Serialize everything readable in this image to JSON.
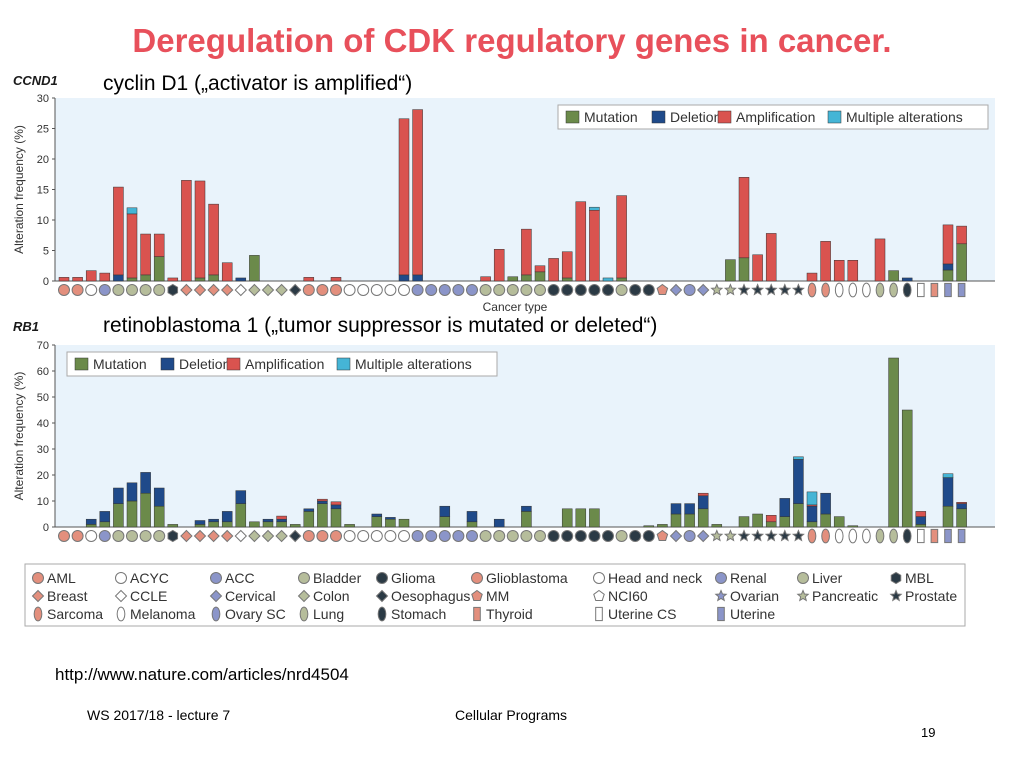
{
  "slide": {
    "title": "Deregulation of CDK regulatory genes in cancer.",
    "subtitle1": "cyclin D1 („activator is amplified“)",
    "subtitle2": "retinoblastoma 1 („tumor suppressor is mutated or deleted“)",
    "url": "http://www.nature.com/articles/nrd4504",
    "footer_left": "WS 2017/18 - lecture 7",
    "footer_center": "Cellular Programs",
    "page_number": "19"
  },
  "colors": {
    "mutation": "#6b8a4a",
    "deletion": "#1f4a8a",
    "amplification": "#d9534f",
    "multiple": "#45b5d6",
    "plot_bg": "#e9f3fb",
    "title": "#e8505b"
  },
  "series_names": [
    "Mutation",
    "Deletion",
    "Amplification",
    "Multiple alterations"
  ],
  "cancer_legend": [
    {
      "label": "AML",
      "shape": "circle",
      "color": "#e38f7d"
    },
    {
      "label": "ACYC",
      "shape": "circle",
      "color": "#ffffff"
    },
    {
      "label": "ACC",
      "shape": "circle",
      "color": "#8b95c9"
    },
    {
      "label": "Bladder",
      "shape": "circle",
      "color": "#b6bd9b"
    },
    {
      "label": "Glioma",
      "shape": "circle",
      "color": "#2b3a45"
    },
    {
      "label": "Glioblastoma",
      "shape": "circle",
      "color": "#e38f7d"
    },
    {
      "label": "Head and neck",
      "shape": "circle",
      "color": "#ffffff"
    },
    {
      "label": "Renal",
      "shape": "circle",
      "color": "#8b95c9"
    },
    {
      "label": "Liver",
      "shape": "circle",
      "color": "#b6bd9b"
    },
    {
      "label": "MBL",
      "shape": "hexagon",
      "color": "#2b3a45"
    },
    {
      "label": "Breast",
      "shape": "diamond",
      "color": "#e38f7d"
    },
    {
      "label": "CCLE",
      "shape": "diamond",
      "color": "#ffffff"
    },
    {
      "label": "Cervical",
      "shape": "diamond",
      "color": "#8b95c9"
    },
    {
      "label": "Colon",
      "shape": "diamond",
      "color": "#b6bd9b"
    },
    {
      "label": "Oesophagus",
      "shape": "diamond",
      "color": "#2b3a45"
    },
    {
      "label": "MM",
      "shape": "pentagon",
      "color": "#e38f7d"
    },
    {
      "label": "NCI60",
      "shape": "pentagon",
      "color": "#ffffff"
    },
    {
      "label": "Ovarian",
      "shape": "star",
      "color": "#8b95c9"
    },
    {
      "label": "Pancreatic",
      "shape": "star",
      "color": "#b6bd9b"
    },
    {
      "label": "Prostate",
      "shape": "star",
      "color": "#2b3a45"
    },
    {
      "label": "Sarcoma",
      "shape": "oval",
      "color": "#e38f7d"
    },
    {
      "label": "Melanoma",
      "shape": "oval",
      "color": "#ffffff"
    },
    {
      "label": "Ovary SC",
      "shape": "oval",
      "color": "#8b95c9"
    },
    {
      "label": "Lung",
      "shape": "oval",
      "color": "#b6bd9b"
    },
    {
      "label": "Stomach",
      "shape": "oval",
      "color": "#2b3a45"
    },
    {
      "label": "Thyroid",
      "shape": "rect",
      "color": "#e38f7d"
    },
    {
      "label": "Uterine CS",
      "shape": "rect",
      "color": "#ffffff"
    },
    {
      "label": "Uterine",
      "shape": "rect",
      "color": "#8b95c9"
    }
  ],
  "categories": [
    "AML",
    "AML",
    "ACYC",
    "ACC",
    "Bladder",
    "Bladder",
    "Bladder",
    "Bladder",
    "MBL",
    "Breast",
    "Breast",
    "Breast",
    "Breast",
    "CCLE",
    "Colon",
    "Colon",
    "Colon",
    "Oesophagus",
    "Glioblastoma",
    "Glioblastoma",
    "Glioblastoma",
    "Head and neck",
    "Head and neck",
    "Head and neck",
    "Head and neck",
    "Head and neck",
    "ACC",
    "Renal",
    "Renal",
    "Renal",
    "Renal",
    "Liver",
    "Liver",
    "Liver",
    "Liver",
    "Liver",
    "Glioma",
    "Glioma",
    "Glioma",
    "Glioma",
    "Glioma",
    "Bladder",
    "Glioma",
    "Glioma",
    "MM",
    "Cervical",
    "Renal",
    "Cervical",
    "Pancreatic",
    "Pancreatic",
    "Prostate",
    "Prostate",
    "Prostate",
    "Prostate",
    "Prostate",
    "Sarcoma",
    "Sarcoma",
    "Melanoma",
    "Melanoma",
    "Melanoma",
    "Lung",
    "Lung",
    "Stomach",
    "Uterine CS",
    "Thyroid",
    "Uterine",
    "Uterine"
  ],
  "chart_data": [
    {
      "type": "bar",
      "stacked": true,
      "gene": "CCND1",
      "ylabel": "Alteration frequency (%)",
      "xlabel": "Cancer type",
      "ylim": [
        0,
        30
      ],
      "yticks": [
        0,
        5,
        10,
        15,
        20,
        25,
        30
      ],
      "legend_position": "top-right",
      "series": [
        {
          "name": "Mutation",
          "values": [
            0,
            0,
            0,
            0,
            0,
            0.5,
            1,
            4,
            0,
            0,
            0.5,
            1,
            0,
            0,
            4.2,
            0,
            0,
            0,
            0,
            0,
            0,
            0,
            0,
            0,
            0,
            0,
            0,
            0,
            0,
            0,
            0,
            0,
            0,
            0.7,
            1,
            1.5,
            0,
            0.5,
            0,
            0,
            0,
            0.5,
            0,
            0,
            0,
            0,
            0,
            0,
            0,
            3.5,
            3.8,
            0,
            0,
            0,
            0,
            0,
            0,
            0,
            0,
            0,
            0,
            1.7,
            0,
            0,
            0,
            1.8,
            6.1
          ]
        },
        {
          "name": "Deletion",
          "values": [
            0,
            0,
            0,
            0,
            1,
            0,
            0,
            0,
            0,
            0,
            0,
            0,
            0,
            0.5,
            0,
            0,
            0,
            0,
            0,
            0,
            0,
            0,
            0,
            0,
            0,
            1,
            1,
            0,
            0,
            0,
            0,
            0,
            0,
            0,
            0,
            0,
            0,
            0,
            0,
            0,
            0,
            0,
            0,
            0,
            0,
            0,
            0,
            0,
            0,
            0,
            0,
            0,
            0,
            0,
            0,
            0,
            0,
            0,
            0,
            0,
            0,
            0,
            0.5,
            0,
            0,
            1,
            0
          ]
        },
        {
          "name": "Amplification",
          "values": [
            0.6,
            0.6,
            1.7,
            1.3,
            14.4,
            10.5,
            6.7,
            3.7,
            0.5,
            16.5,
            15.9,
            11.6,
            3,
            0,
            0,
            0,
            0,
            0,
            0.6,
            0,
            0.6,
            0,
            0,
            0,
            0,
            25.6,
            27.1,
            0,
            0,
            0,
            0,
            0.7,
            5.2,
            0,
            7.5,
            1,
            3.7,
            4.3,
            13,
            11.6,
            0,
            13.5,
            0,
            0,
            0,
            0,
            0,
            0,
            0,
            0,
            13.2,
            4.3,
            7.8,
            0,
            0,
            1.3,
            6.5,
            3.4,
            3.4,
            0,
            6.9,
            0,
            0,
            0,
            0,
            6.4,
            2.9
          ]
        },
        {
          "name": "Multiple alterations",
          "values": [
            0,
            0,
            0,
            0,
            0,
            1,
            0,
            0,
            0,
            0,
            0,
            0,
            0,
            0,
            0,
            0,
            0,
            0,
            0,
            0,
            0,
            0,
            0,
            0,
            0,
            0,
            0,
            0,
            0,
            0,
            0,
            0,
            0,
            0,
            0,
            0,
            0,
            0,
            0,
            0.5,
            0.5,
            0,
            0,
            0,
            0,
            0,
            0,
            0,
            0,
            0,
            0,
            0,
            0,
            0,
            0,
            0,
            0,
            0,
            0,
            0,
            0,
            0,
            0,
            0,
            0,
            0,
            0
          ]
        }
      ]
    },
    {
      "type": "bar",
      "stacked": true,
      "gene": "RB1",
      "ylabel": "Alteration frequency (%)",
      "xlabel": "",
      "ylim": [
        0,
        70
      ],
      "yticks": [
        0,
        10,
        20,
        30,
        40,
        50,
        60,
        70
      ],
      "legend_position": "top-left",
      "series": [
        {
          "name": "Mutation",
          "values": [
            0,
            0,
            1,
            2,
            9,
            10,
            13,
            8,
            1,
            0,
            1,
            2,
            2,
            9,
            2,
            2,
            2,
            1,
            6,
            9,
            7,
            1,
            0,
            4,
            3,
            3,
            0,
            0,
            4,
            0,
            2,
            0,
            0,
            0,
            6,
            0,
            0,
            7,
            7,
            7,
            0,
            0,
            0,
            0.5,
            1,
            5,
            5,
            7,
            1,
            0,
            4,
            5,
            2,
            4,
            9,
            2,
            5,
            4,
            0.5,
            0,
            0,
            65,
            45,
            1,
            0,
            8,
            7
          ]
        },
        {
          "name": "Deletion",
          "values": [
            0,
            0,
            2,
            4,
            6,
            7,
            8,
            7,
            0,
            0,
            1.5,
            1,
            4,
            5,
            0,
            1,
            1,
            0,
            1,
            1,
            1.5,
            0,
            0,
            1,
            0.7,
            0,
            0,
            0,
            4,
            0,
            4,
            0,
            3,
            0,
            2,
            0,
            0,
            0,
            0,
            0,
            0,
            0,
            0,
            0,
            0,
            4,
            4,
            5,
            0,
            0,
            0,
            0,
            0,
            7,
            17,
            6,
            8,
            0,
            0,
            0,
            0,
            0,
            0,
            3,
            0,
            11,
            2
          ]
        },
        {
          "name": "Amplification",
          "values": [
            0,
            0,
            0,
            0,
            0,
            0,
            0,
            0,
            0,
            0,
            0,
            0,
            0,
            0,
            0,
            0,
            1.2,
            0,
            0,
            0.7,
            1.2,
            0,
            0,
            0,
            0,
            0,
            0,
            0,
            0,
            0,
            0,
            0,
            0,
            0,
            0,
            0,
            0,
            0,
            0,
            0,
            0,
            0,
            0,
            0,
            0,
            0,
            0,
            1,
            0,
            0,
            0,
            0,
            2.5,
            0,
            0,
            0.5,
            0,
            0,
            0,
            0,
            0,
            0,
            0,
            2,
            0,
            0,
            0.5
          ]
        },
        {
          "name": "Multiple alterations",
          "values": [
            0,
            0,
            0,
            0,
            0,
            0,
            0,
            0,
            0,
            0,
            0,
            0,
            0,
            0,
            0,
            0,
            0,
            0,
            0,
            0,
            0,
            0,
            0,
            0,
            0,
            0,
            0,
            0,
            0,
            0,
            0,
            0,
            0,
            0,
            0,
            0,
            0,
            0,
            0,
            0,
            0,
            0,
            0,
            0,
            0,
            0,
            0,
            0,
            0,
            0,
            0,
            0,
            0,
            0,
            1,
            5,
            0,
            0,
            0,
            0,
            0,
            0,
            0,
            0,
            0,
            1.5,
            0
          ]
        }
      ]
    }
  ]
}
